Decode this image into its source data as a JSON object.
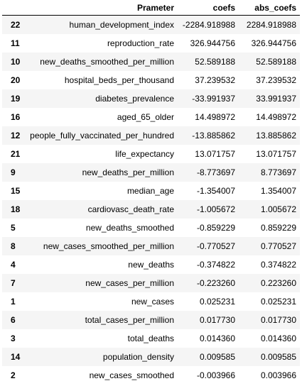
{
  "table": {
    "headers": [
      "",
      "Prameter",
      "coefs",
      "abs_coefs"
    ],
    "rows": [
      [
        "22",
        "human_development_index",
        "-2284.918988",
        "2284.918988"
      ],
      [
        "11",
        "reproduction_rate",
        "326.944756",
        "326.944756"
      ],
      [
        "10",
        "new_deaths_smoothed_per_million",
        "52.589188",
        "52.589188"
      ],
      [
        "20",
        "hospital_beds_per_thousand",
        "37.239532",
        "37.239532"
      ],
      [
        "19",
        "diabetes_prevalence",
        "-33.991937",
        "33.991937"
      ],
      [
        "16",
        "aged_65_older",
        "14.498972",
        "14.498972"
      ],
      [
        "12",
        "people_fully_vaccinated_per_hundred",
        "-13.885862",
        "13.885862"
      ],
      [
        "21",
        "life_expectancy",
        "13.071757",
        "13.071757"
      ],
      [
        "9",
        "new_deaths_per_million",
        "-8.773697",
        "8.773697"
      ],
      [
        "15",
        "median_age",
        "-1.354007",
        "1.354007"
      ],
      [
        "18",
        "cardiovasc_death_rate",
        "-1.005672",
        "1.005672"
      ],
      [
        "5",
        "new_deaths_smoothed",
        "-0.859229",
        "0.859229"
      ],
      [
        "8",
        "new_cases_smoothed_per_million",
        "-0.770527",
        "0.770527"
      ],
      [
        "4",
        "new_deaths",
        "-0.374822",
        "0.374822"
      ],
      [
        "7",
        "new_cases_per_million",
        "-0.223260",
        "0.223260"
      ],
      [
        "1",
        "new_cases",
        "0.025231",
        "0.025231"
      ],
      [
        "6",
        "total_cases_per_million",
        "0.017730",
        "0.017730"
      ],
      [
        "3",
        "total_deaths",
        "0.014360",
        "0.014360"
      ],
      [
        "14",
        "population_density",
        "0.009585",
        "0.009585"
      ],
      [
        "2",
        "new_cases_smoothed",
        "-0.003966",
        "0.003966"
      ]
    ]
  },
  "colors": {
    "striped_row": "#f5f5f5",
    "plain_row": "#ffffff",
    "header_rule": "#000000"
  }
}
